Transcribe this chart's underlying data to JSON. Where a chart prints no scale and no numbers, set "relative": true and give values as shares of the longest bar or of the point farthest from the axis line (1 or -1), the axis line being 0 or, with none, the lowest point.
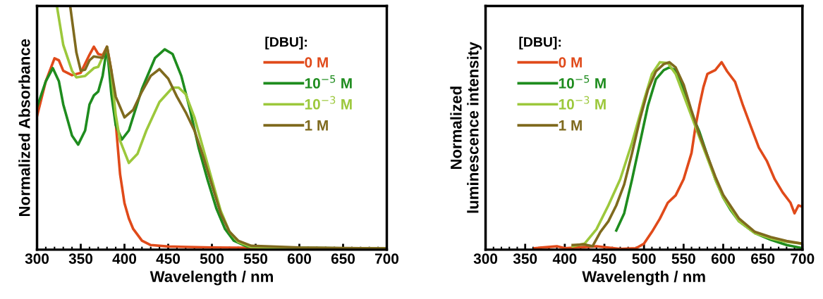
{
  "chart_data": [
    {
      "type": "line",
      "relative": true,
      "xlabel": "Wavelength / nm",
      "ylabel": "Normalized Absorbance",
      "legend_title": "[DBU]:",
      "legend": "top right",
      "tick_labels": "x",
      "grid": false,
      "xlim": [
        300,
        700
      ],
      "xticks": [
        300,
        350,
        400,
        450,
        500,
        550,
        600,
        650,
        700
      ],
      "series": [
        {
          "name": "0 M",
          "color": "#e04a1a",
          "x": [
            300,
            310,
            320,
            325,
            330,
            340,
            350,
            360,
            365,
            370,
            375,
            380,
            385,
            390,
            395,
            400,
            405,
            410,
            420,
            430,
            450,
            500,
            600,
            700
          ],
          "values": [
            0.548,
            0.691,
            0.785,
            0.777,
            0.734,
            0.716,
            0.726,
            0.8,
            0.833,
            0.803,
            0.798,
            0.833,
            0.734,
            0.521,
            0.309,
            0.191,
            0.128,
            0.085,
            0.037,
            0.019,
            0.013,
            0.009,
            0.006,
            0.004
          ]
        },
        {
          "name": "10$^{−5}$ M",
          "color": "#1e8c1e",
          "x": [
            300,
            310,
            318,
            325,
            330,
            340,
            347,
            355,
            360,
            365,
            370,
            375,
            380,
            385,
            390,
            397,
            405,
            420,
            435,
            446,
            455,
            465,
            475,
            485,
            495,
            505,
            515,
            525,
            540,
            560,
            700
          ],
          "values": [
            0.585,
            0.691,
            0.745,
            0.691,
            0.596,
            0.468,
            0.431,
            0.489,
            0.596,
            0.633,
            0.649,
            0.713,
            0.83,
            0.638,
            0.511,
            0.452,
            0.489,
            0.66,
            0.787,
            0.822,
            0.803,
            0.713,
            0.574,
            0.415,
            0.287,
            0.17,
            0.085,
            0.037,
            0.013,
            0.009,
            0.004
          ]
        },
        {
          "name": "10$^{−3}$ M",
          "color": "#9cc83c",
          "x": [
            322.7,
            330,
            340,
            345,
            355,
            365,
            370,
            375,
            380,
            385,
            390,
            395,
            405,
            415,
            425,
            440,
            455,
            462,
            470,
            480,
            490,
            500,
            510,
            520,
            530,
            545,
            600,
            700
          ],
          "values": [
            1.0,
            0.84,
            0.734,
            0.707,
            0.713,
            0.745,
            0.75,
            0.79,
            0.83,
            0.723,
            0.553,
            0.447,
            0.356,
            0.394,
            0.489,
            0.606,
            0.665,
            0.665,
            0.638,
            0.543,
            0.415,
            0.287,
            0.16,
            0.074,
            0.032,
            0.011,
            0.006,
            0.004
          ]
        },
        {
          "name": "1 M",
          "color": "#7f6a1e",
          "x": [
            337.9,
            345,
            350,
            355,
            360,
            365,
            375,
            380,
            385,
            390,
            400,
            410,
            420,
            430,
            440,
            450,
            460,
            470,
            480,
            490,
            500,
            510,
            520,
            530,
            545,
            600,
            700
          ],
          "values": [
            1.0,
            0.809,
            0.734,
            0.739,
            0.777,
            0.793,
            0.787,
            0.833,
            0.734,
            0.628,
            0.543,
            0.574,
            0.649,
            0.713,
            0.741,
            0.702,
            0.628,
            0.564,
            0.489,
            0.383,
            0.266,
            0.149,
            0.074,
            0.037,
            0.016,
            0.009,
            0.005
          ]
        }
      ]
    },
    {
      "type": "line",
      "relative": true,
      "xlabel": "Wavelength / nm",
      "ylabel": "Normalized\nluminescence intensity",
      "legend_title": "[DBU]:",
      "legend": "top left",
      "tick_labels": "x",
      "grid": false,
      "xlim": [
        300,
        700
      ],
      "xticks": [
        300,
        350,
        400,
        450,
        500,
        550,
        600,
        650,
        700
      ],
      "series": [
        {
          "name": "0 M",
          "color": "#e04a1a",
          "x": [
            362,
            390,
            400,
            440,
            470,
            490,
            500,
            510,
            520,
            530,
            540,
            550,
            560,
            565,
            570,
            575,
            580,
            590,
            598,
            605,
            615,
            625,
            635,
            645,
            655,
            665,
            675,
            685,
            690,
            695,
            700
          ],
          "values": [
            0.008,
            0.018,
            0.008,
            0.018,
            0.004,
            0.008,
            0.032,
            0.095,
            0.165,
            0.25,
            0.29,
            0.376,
            0.516,
            0.656,
            0.769,
            0.867,
            0.937,
            0.958,
            1.0,
            0.951,
            0.895,
            0.769,
            0.656,
            0.544,
            0.474,
            0.376,
            0.306,
            0.25,
            0.194,
            0.236,
            0.229
          ]
        },
        {
          "name": "10$^{−5}$ M",
          "color": "#1e8c1e",
          "x": [
            465,
            475,
            485,
            495,
            505,
            515,
            525,
            532,
            540,
            550,
            560,
            570,
            580,
            590,
            600,
            610,
            620,
            640,
            660,
            680,
            700
          ],
          "values": [
            0.102,
            0.194,
            0.376,
            0.572,
            0.769,
            0.909,
            0.958,
            0.972,
            0.958,
            0.853,
            0.727,
            0.628,
            0.502,
            0.376,
            0.278,
            0.208,
            0.151,
            0.088,
            0.053,
            0.025,
            0.008
          ]
        },
        {
          "name": "10$^{−3}$ M",
          "color": "#9cc83c",
          "x": [
            410,
            425,
            440,
            455,
            470,
            485,
            500,
            510,
            520,
            530,
            540,
            550,
            560,
            570,
            580,
            590,
            600,
            620,
            640,
            660,
            680,
            700
          ],
          "values": [
            0.018,
            0.032,
            0.109,
            0.236,
            0.376,
            0.572,
            0.797,
            0.937,
            1.0,
            0.996,
            0.937,
            0.825,
            0.712,
            0.6,
            0.488,
            0.376,
            0.278,
            0.151,
            0.088,
            0.06,
            0.042,
            0.032
          ]
        },
        {
          "name": "1 M",
          "color": "#7f6a1e",
          "x": [
            410,
            425,
            435,
            445,
            455,
            465,
            475,
            485,
            495,
            505,
            515,
            525,
            532,
            540,
            550,
            560,
            570,
            580,
            590,
            600,
            620,
            640,
            660,
            680,
            700
          ],
          "values": [
            0.025,
            0.028,
            0.018,
            0.095,
            0.151,
            0.236,
            0.348,
            0.516,
            0.698,
            0.853,
            0.951,
            0.99,
            1.0,
            0.972,
            0.881,
            0.741,
            0.614,
            0.502,
            0.39,
            0.292,
            0.166,
            0.095,
            0.067,
            0.046,
            0.032
          ]
        }
      ]
    }
  ]
}
